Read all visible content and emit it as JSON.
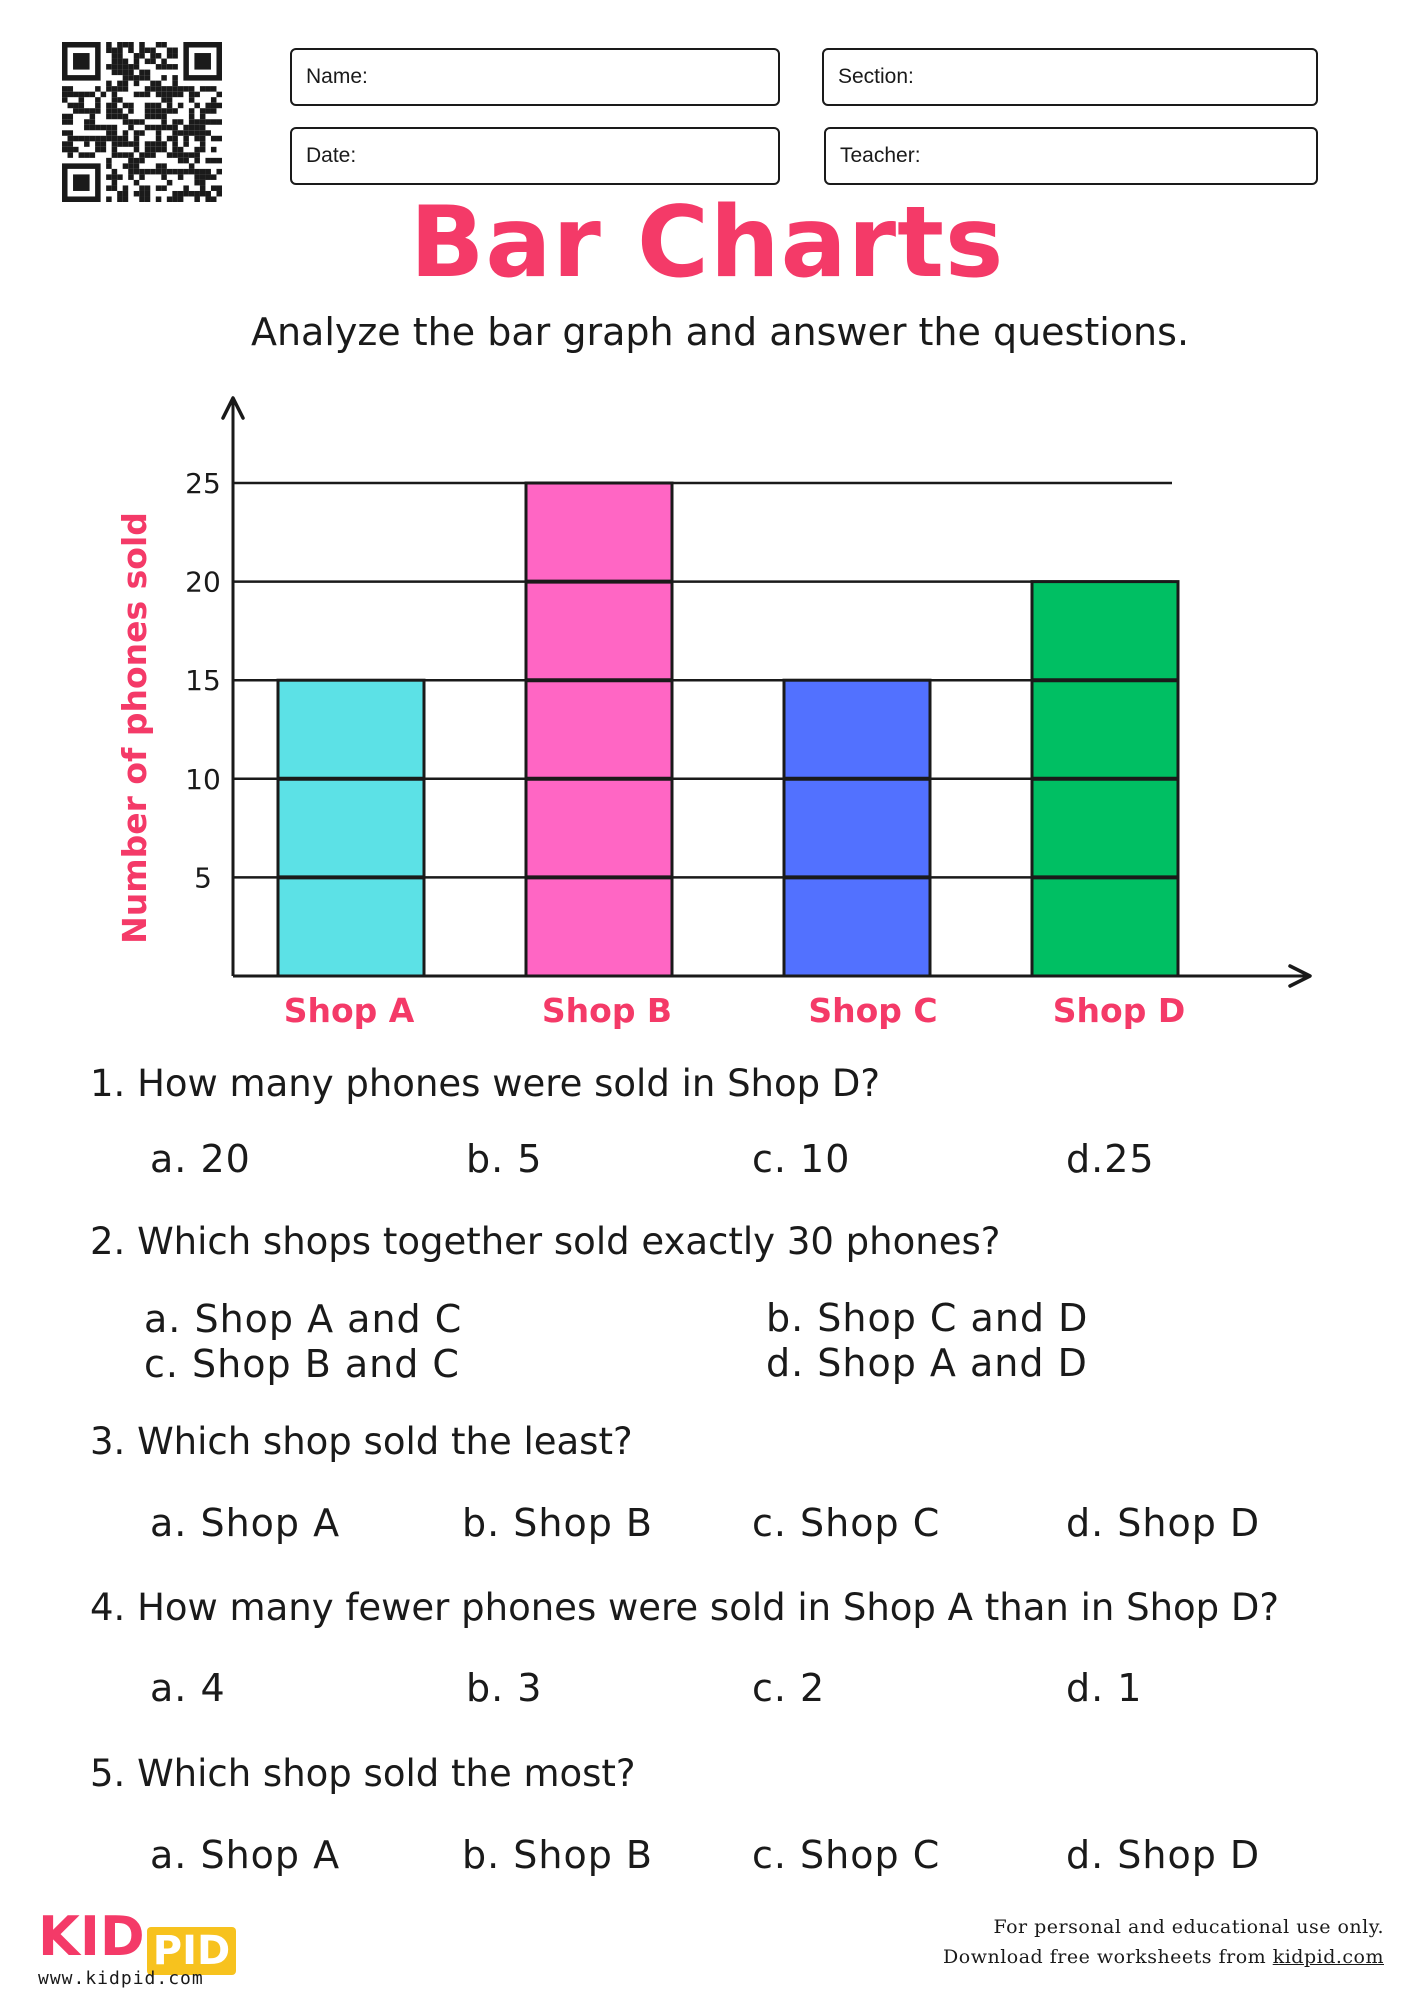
{
  "header": {
    "fields": {
      "name": "Name:",
      "section": "Section:",
      "date": "Date:",
      "teacher": "Teacher:"
    },
    "title": "Bar Charts",
    "subtitle": "Analyze the bar graph and answer the questions."
  },
  "chart_data": {
    "type": "bar",
    "categories": [
      "Shop A",
      "Shop B",
      "Shop C",
      "Shop D"
    ],
    "values": [
      15,
      25,
      15,
      20
    ],
    "colors": [
      "#5ce1e6",
      "#ff66c4",
      "#5271ff",
      "#00bf63"
    ],
    "ylabel": "Number of phones sold",
    "yticks": [
      "5",
      "10",
      "15",
      "20",
      "25"
    ],
    "ylim": [
      0,
      25
    ],
    "grid": true,
    "label_color": "#f43a68"
  },
  "questions": [
    {
      "text": "1.  How many phones were sold in Shop D?",
      "options": [
        "a. 20",
        "b. 5",
        "c. 10",
        "d.25"
      ]
    },
    {
      "text": "2. Which shops together sold exactly 30 phones?",
      "options": [
        "a. Shop A and C",
        "b. Shop C and D",
        "c. Shop B and C",
        "d. Shop A and D"
      ]
    },
    {
      "text": "3. Which shop sold the least?",
      "options": [
        "a. Shop A",
        "b. Shop B",
        "c. Shop C",
        "d. Shop D"
      ]
    },
    {
      "text": "4. How many fewer phones were sold in Shop A than in Shop D?",
      "options": [
        "a. 4",
        "b. 3",
        "c. 2",
        "d. 1"
      ]
    },
    {
      "text": "5. Which shop sold the most?",
      "options": [
        "a. Shop A",
        "b. Shop B",
        "c. Shop C",
        "d. Shop D"
      ]
    }
  ],
  "footer": {
    "logo_kid": "KID",
    "logo_pid": "PID",
    "logo_url": "www.kidpid.com",
    "note1": "For personal and educational use only.",
    "note2_prefix": "Download free worksheets from ",
    "note2_link": "kidpid.com"
  }
}
